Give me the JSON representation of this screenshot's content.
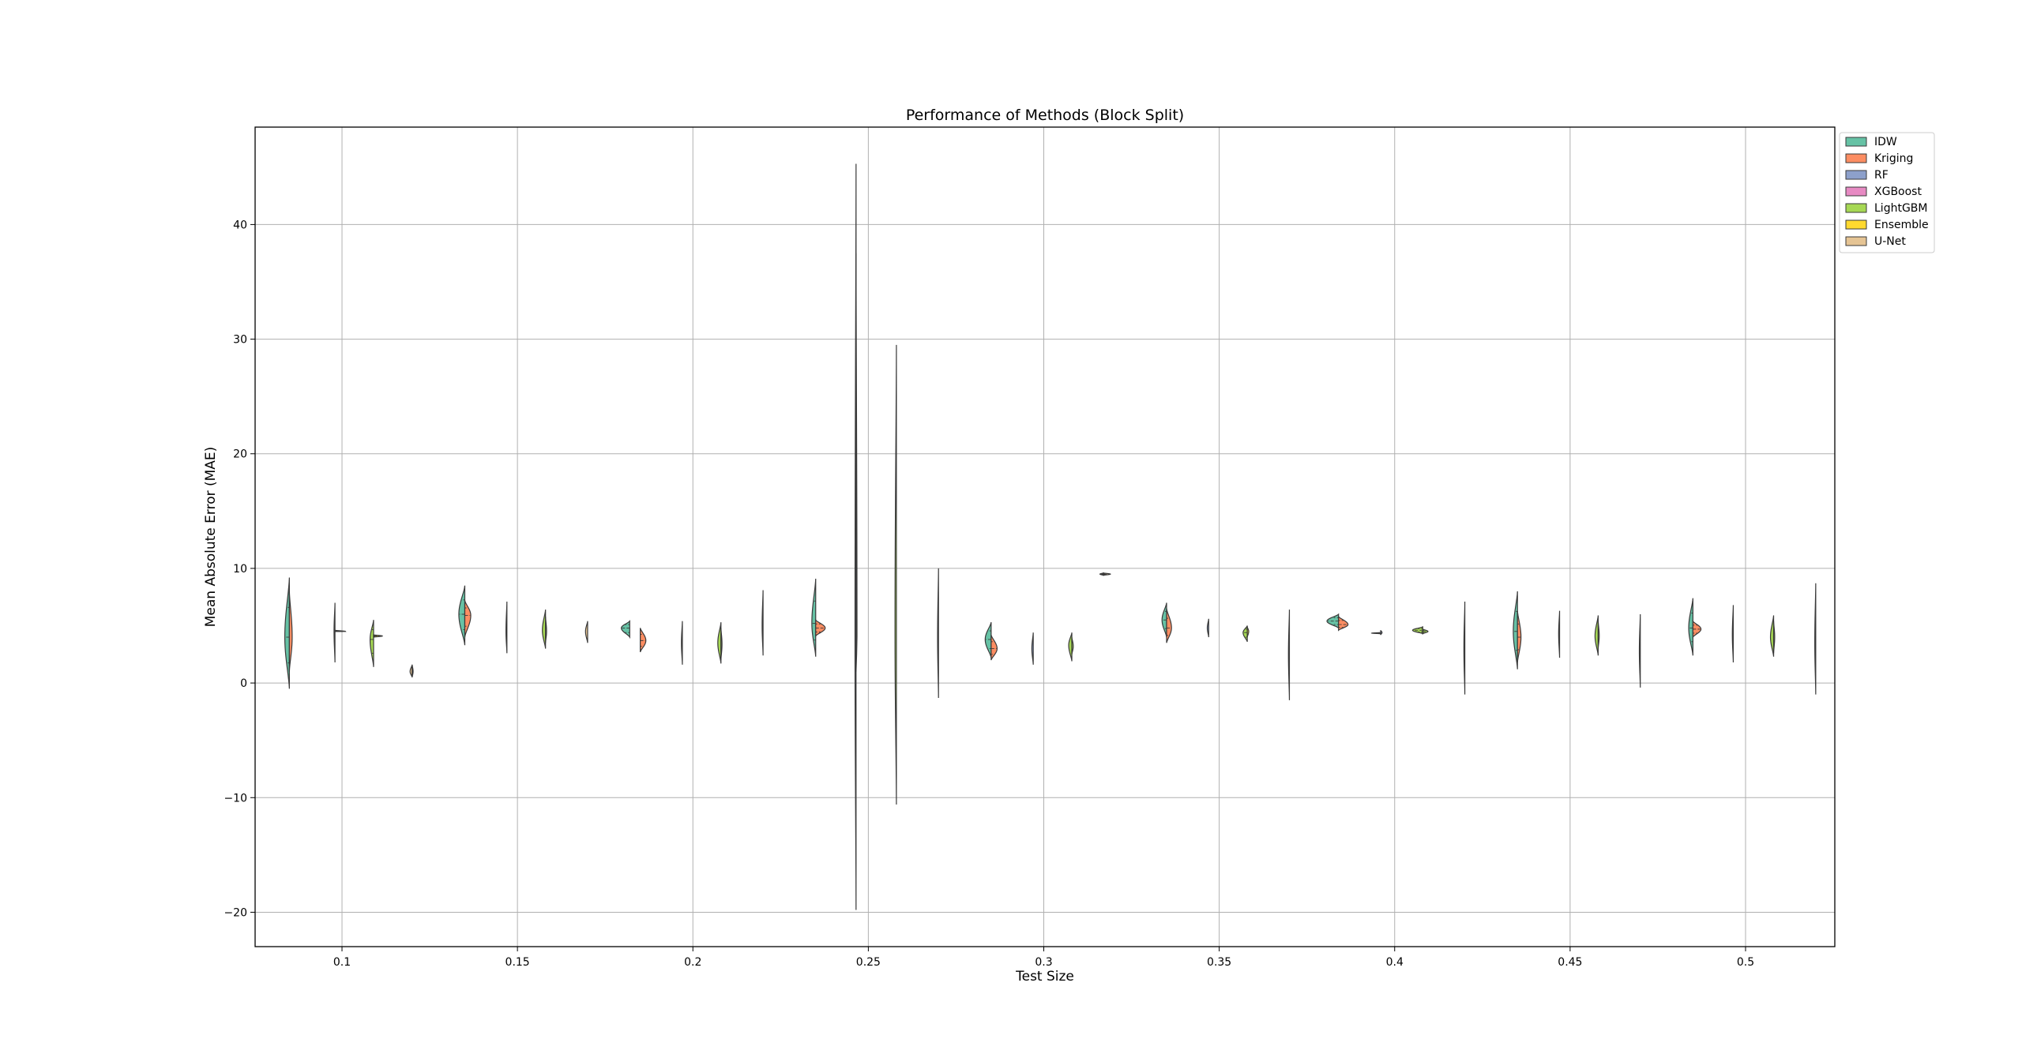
{
  "chart_data": {
    "type": "violin",
    "title": "Performance of Methods (Block Split)",
    "xlabel": "Test Size",
    "ylabel": "Mean Absolute Error (MAE)",
    "categories": [
      "0.1",
      "0.15",
      "0.2",
      "0.25",
      "0.3",
      "0.35",
      "0.4",
      "0.45",
      "0.5"
    ],
    "ylim": [
      -23,
      48.5
    ],
    "yticks": [
      -20,
      -10,
      0,
      10,
      20,
      30,
      40
    ],
    "ytick_labels": [
      "−20",
      "−10",
      "0",
      "10",
      "20",
      "30",
      "40"
    ],
    "grid": true,
    "legend_position": "upper right, outside plot",
    "series": [
      {
        "name": "IDW",
        "color": "#66c2a5"
      },
      {
        "name": "Kriging",
        "color": "#fc8d62"
      },
      {
        "name": "RF",
        "color": "#8da0cb"
      },
      {
        "name": "XGBoost",
        "color": "#e78ac3"
      },
      {
        "name": "LightGBM",
        "color": "#a6d854"
      },
      {
        "name": "Ensemble",
        "color": "#ffd92f"
      },
      {
        "name": "U-Net",
        "color": "#e5c494"
      }
    ],
    "violins": [
      {
        "x": 0.085,
        "side": "left",
        "series": "IDW",
        "min": -0.5,
        "max": 9.2,
        "peak": 4.0,
        "width": 0.0013
      },
      {
        "x": 0.085,
        "side": "right",
        "series": "Kriging",
        "min": 1.0,
        "max": 8.0,
        "peak": 4.0,
        "width": 0.0008
      },
      {
        "x": 0.098,
        "side": "left",
        "series": "RF",
        "min": 1.8,
        "max": 7.0,
        "peak": 4.5,
        "width": 0.0002
      },
      {
        "x": 0.098,
        "side": "right",
        "series": "XGBoost",
        "min": 4.5,
        "max": 4.6,
        "peak": 4.5,
        "width": 0.003
      },
      {
        "x": 0.109,
        "side": "left",
        "series": "LightGBM",
        "min": 1.4,
        "max": 5.5,
        "peak": 3.8,
        "width": 0.001
      },
      {
        "x": 0.109,
        "side": "right",
        "series": "Ensemble",
        "min": 4.0,
        "max": 4.2,
        "peak": 4.1,
        "width": 0.0025
      },
      {
        "x": 0.12,
        "side": "left",
        "series": "U-Net",
        "min": 0.5,
        "max": 1.6,
        "peak": 1.0,
        "width": 0.0006
      },
      {
        "x": 0.12,
        "side": "right",
        "series": "U-Net",
        "min": 0.5,
        "max": 1.6,
        "peak": 1.0,
        "width": 0.0002
      },
      {
        "x": 0.135,
        "side": "left",
        "series": "IDW",
        "min": 3.3,
        "max": 8.5,
        "peak": 6.0,
        "width": 0.0017
      },
      {
        "x": 0.135,
        "side": "right",
        "series": "Kriging",
        "min": 4.0,
        "max": 7.2,
        "peak": 5.9,
        "width": 0.0017
      },
      {
        "x": 0.147,
        "side": "left",
        "series": "RF",
        "min": 2.6,
        "max": 7.1,
        "peak": 4.5,
        "width": 0.0002
      },
      {
        "x": 0.158,
        "side": "left",
        "series": "LightGBM",
        "min": 3.0,
        "max": 6.4,
        "peak": 4.6,
        "width": 0.0009
      },
      {
        "x": 0.158,
        "side": "right",
        "series": "LightGBM",
        "min": 3.5,
        "max": 5.8,
        "peak": 4.5,
        "width": 0.0003
      },
      {
        "x": 0.17,
        "side": "left",
        "series": "U-Net",
        "min": 3.5,
        "max": 5.4,
        "peak": 4.5,
        "width": 0.0006
      },
      {
        "x": 0.182,
        "side": "left",
        "series": "IDW",
        "min": 4.0,
        "max": 5.4,
        "peak": 4.8,
        "width": 0.0024
      },
      {
        "x": 0.185,
        "side": "right",
        "series": "Kriging",
        "min": 2.7,
        "max": 4.8,
        "peak": 3.7,
        "width": 0.0016
      },
      {
        "x": 0.197,
        "side": "left",
        "series": "RF",
        "min": 1.6,
        "max": 5.4,
        "peak": 3.5,
        "width": 0.0002
      },
      {
        "x": 0.208,
        "side": "left",
        "series": "LightGBM",
        "min": 1.7,
        "max": 5.3,
        "peak": 3.5,
        "width": 0.0009
      },
      {
        "x": 0.208,
        "side": "right",
        "series": "LightGBM",
        "min": 2.0,
        "max": 4.8,
        "peak": 3.4,
        "width": 0.0003
      },
      {
        "x": 0.22,
        "side": "left",
        "series": "U-Net",
        "min": 2.4,
        "max": 8.1,
        "peak": 5.0,
        "width": 0.0002
      },
      {
        "x": 0.235,
        "side": "left",
        "series": "IDW",
        "min": 2.3,
        "max": 9.1,
        "peak": 5.2,
        "width": 0.0011
      },
      {
        "x": 0.235,
        "side": "right",
        "series": "Kriging",
        "min": 4.1,
        "max": 5.5,
        "peak": 4.8,
        "width": 0.0027
      },
      {
        "x": 0.2465,
        "side": "left",
        "series": "RF",
        "min": -19.8,
        "max": 45.3,
        "peak": 4.0,
        "width": 0.0003
      },
      {
        "x": 0.2465,
        "side": "right",
        "series": "XGBoost",
        "min": 1.0,
        "max": 37.5,
        "peak": 4.0,
        "width": 0.0002
      },
      {
        "x": 0.258,
        "side": "left",
        "series": "LightGBM",
        "min": -10.6,
        "max": 29.5,
        "peak": 4.3,
        "width": 0.0004
      },
      {
        "x": 0.27,
        "side": "left",
        "series": "U-Net",
        "min": -1.3,
        "max": 10.0,
        "peak": 4.0,
        "width": 0.0002
      },
      {
        "x": 0.285,
        "side": "left",
        "series": "IDW",
        "min": 2.2,
        "max": 5.3,
        "peak": 3.8,
        "width": 0.0017
      },
      {
        "x": 0.285,
        "side": "right",
        "series": "Kriging",
        "min": 2.0,
        "max": 4.2,
        "peak": 3.0,
        "width": 0.0017
      },
      {
        "x": 0.297,
        "side": "left",
        "series": "RF",
        "min": 1.6,
        "max": 4.4,
        "peak": 3.0,
        "width": 0.0004
      },
      {
        "x": 0.308,
        "side": "left",
        "series": "LightGBM",
        "min": 1.9,
        "max": 4.4,
        "peak": 3.3,
        "width": 0.0009
      },
      {
        "x": 0.308,
        "side": "right",
        "series": "LightGBM",
        "min": 2.5,
        "max": 4.0,
        "peak": 3.2,
        "width": 0.0004
      },
      {
        "x": 0.317,
        "side": "left",
        "series": "U-Net",
        "min": 9.4,
        "max": 9.6,
        "peak": 9.5,
        "width": 0.001
      },
      {
        "x": 0.317,
        "side": "right",
        "series": "U-Net",
        "min": 9.4,
        "max": 9.6,
        "peak": 9.5,
        "width": 0.002
      },
      {
        "x": 0.335,
        "side": "left",
        "series": "IDW",
        "min": 4.0,
        "max": 7.0,
        "peak": 5.5,
        "width": 0.0013
      },
      {
        "x": 0.335,
        "side": "right",
        "series": "Kriging",
        "min": 3.5,
        "max": 6.5,
        "peak": 4.8,
        "width": 0.0014
      },
      {
        "x": 0.347,
        "side": "left",
        "series": "RF",
        "min": 4.0,
        "max": 5.6,
        "peak": 4.8,
        "width": 0.0004
      },
      {
        "x": 0.358,
        "side": "left",
        "series": "LightGBM",
        "min": 3.6,
        "max": 5.0,
        "peak": 4.4,
        "width": 0.0012
      },
      {
        "x": 0.358,
        "side": "right",
        "series": "Ensemble",
        "min": 4.0,
        "max": 4.9,
        "peak": 4.5,
        "width": 0.0004
      },
      {
        "x": 0.37,
        "side": "left",
        "series": "U-Net",
        "min": -1.5,
        "max": 6.4,
        "peak": 2.5,
        "width": 0.0002
      },
      {
        "x": 0.384,
        "side": "left",
        "series": "IDW",
        "min": 4.8,
        "max": 6.0,
        "peak": 5.4,
        "width": 0.0033
      },
      {
        "x": 0.384,
        "side": "right",
        "series": "Kriging",
        "min": 4.6,
        "max": 5.8,
        "peak": 5.1,
        "width": 0.0027
      },
      {
        "x": 0.396,
        "side": "right",
        "series": "RF",
        "min": 4.2,
        "max": 4.6,
        "peak": 4.4,
        "width": 0.0004
      },
      {
        "x": 0.396,
        "side": "left",
        "series": "RF",
        "min": 4.3,
        "max": 4.4,
        "peak": 4.35,
        "width": 0.0025
      },
      {
        "x": 0.408,
        "side": "left",
        "series": "LightGBM",
        "min": 4.3,
        "max": 4.9,
        "peak": 4.6,
        "width": 0.0029
      },
      {
        "x": 0.408,
        "side": "right",
        "series": "LightGBM",
        "min": 4.3,
        "max": 4.7,
        "peak": 4.5,
        "width": 0.0015
      },
      {
        "x": 0.42,
        "side": "left",
        "series": "U-Net",
        "min": -1.0,
        "max": 7.1,
        "peak": 3.0,
        "width": 0.0002
      },
      {
        "x": 0.435,
        "side": "left",
        "series": "IDW",
        "min": 1.2,
        "max": 8.0,
        "peak": 4.5,
        "width": 0.0012
      },
      {
        "x": 0.435,
        "side": "right",
        "series": "Kriging",
        "min": 1.8,
        "max": 6.3,
        "peak": 4.0,
        "width": 0.001
      },
      {
        "x": 0.447,
        "side": "left",
        "series": "RF",
        "min": 2.2,
        "max": 6.3,
        "peak": 4.3,
        "width": 0.0002
      },
      {
        "x": 0.458,
        "side": "left",
        "series": "LightGBM",
        "min": 2.4,
        "max": 5.9,
        "peak": 4.1,
        "width": 0.0009
      },
      {
        "x": 0.458,
        "side": "right",
        "series": "LightGBM",
        "min": 3.0,
        "max": 5.4,
        "peak": 4.1,
        "width": 0.0003
      },
      {
        "x": 0.47,
        "side": "left",
        "series": "U-Net",
        "min": -0.4,
        "max": 6.0,
        "peak": 2.8,
        "width": 0.0002
      },
      {
        "x": 0.485,
        "side": "left",
        "series": "IDW",
        "min": 2.4,
        "max": 7.4,
        "peak": 4.8,
        "width": 0.0012
      },
      {
        "x": 0.485,
        "side": "right",
        "series": "Kriging",
        "min": 4.0,
        "max": 5.4,
        "peak": 4.7,
        "width": 0.0023
      },
      {
        "x": 0.4965,
        "side": "left",
        "series": "RF",
        "min": 1.8,
        "max": 6.8,
        "peak": 4.2,
        "width": 0.0002
      },
      {
        "x": 0.508,
        "side": "left",
        "series": "LightGBM",
        "min": 2.3,
        "max": 5.9,
        "peak": 4.0,
        "width": 0.0009
      },
      {
        "x": 0.508,
        "side": "right",
        "series": "LightGBM",
        "min": 2.6,
        "max": 5.4,
        "peak": 4.0,
        "width": 0.0003
      },
      {
        "x": 0.52,
        "side": "left",
        "series": "U-Net",
        "min": -1.0,
        "max": 8.7,
        "peak": 3.5,
        "width": 0.0002
      }
    ]
  }
}
